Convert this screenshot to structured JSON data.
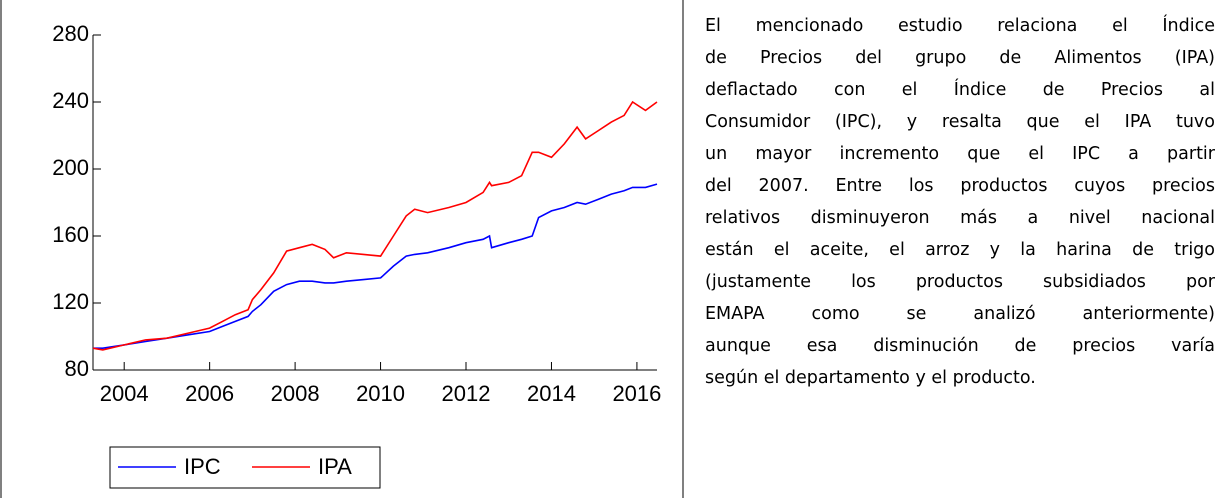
{
  "chart_data": {
    "type": "line",
    "xlim": [
      2003.27,
      2016.47
    ],
    "xticks": [
      2004,
      2006,
      2008,
      2010,
      2012,
      2014,
      2016
    ],
    "ylim": [
      80,
      280
    ],
    "yticks": [
      80,
      120,
      160,
      200,
      240,
      280
    ],
    "x": [
      2003.27,
      2003.5,
      2004.0,
      2004.5,
      2005.0,
      2005.5,
      2006.0,
      2006.3,
      2006.6,
      2006.9,
      2007.0,
      2007.2,
      2007.5,
      2007.8,
      2008.1,
      2008.4,
      2008.7,
      2008.9,
      2009.2,
      2009.6,
      2010.0,
      2010.3,
      2010.6,
      2010.8,
      2011.1,
      2011.6,
      2012.0,
      2012.4,
      2012.55,
      2012.6,
      2013.0,
      2013.3,
      2013.55,
      2013.7,
      2014.0,
      2014.3,
      2014.6,
      2014.8,
      2015.1,
      2015.4,
      2015.7,
      2015.9,
      2016.2,
      2016.47
    ],
    "series": [
      {
        "name": "IPC",
        "color": "#0000ff",
        "values": [
          93,
          93,
          95,
          97,
          99,
          101,
          103,
          106,
          109,
          112,
          115,
          119,
          127,
          131,
          133,
          133,
          132,
          132,
          133,
          134,
          135,
          142,
          148,
          149,
          150,
          153,
          156,
          158,
          160,
          153,
          156,
          158,
          160,
          171,
          175,
          177,
          180,
          179,
          182,
          185,
          187,
          189,
          189,
          191
        ]
      },
      {
        "name": "IPA",
        "color": "#ff0000",
        "values": [
          93,
          92,
          95,
          98,
          99,
          102,
          105,
          109,
          113,
          116,
          122,
          128,
          138,
          151,
          153,
          155,
          152,
          147,
          150,
          149,
          148,
          160,
          172,
          176,
          174,
          177,
          180,
          186,
          192,
          190,
          192,
          196,
          210,
          210,
          207,
          215,
          225,
          218,
          223,
          228,
          232,
          240,
          235,
          240
        ]
      }
    ]
  },
  "text": {
    "lines": [
      "El mencionado estudio relaciona el Índice",
      "de Precios del grupo de Alimentos (IPA)",
      "deflactado con el Índice de Precios al",
      "Consumidor (IPC), y resalta que el IPA tuvo",
      "un mayor incremento que el IPC a partir",
      "del 2007. Entre los productos cuyos precios",
      "relativos disminuyeron más a nivel nacional",
      "están el aceite, el arroz y la harina de trigo",
      "(justamente los productos subsidiados por",
      "EMAPA como se analizó anteriormente)",
      "aunque esa disminución de precios varía",
      "según el departamento y el producto."
    ]
  }
}
